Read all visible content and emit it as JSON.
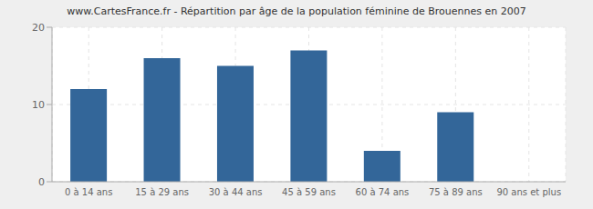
{
  "chart_data": {
    "type": "bar",
    "title": "www.CartesFrance.fr - Répartition par âge de la population féminine de Brouennes en 2007",
    "categories": [
      "0 à 14 ans",
      "15 à 29 ans",
      "30 à 44 ans",
      "45 à 59 ans",
      "60 à 74 ans",
      "75 à 89 ans",
      "90 ans et plus"
    ],
    "values": [
      12,
      16,
      15,
      17,
      4,
      9,
      0
    ],
    "color": "#336699",
    "ylim": [
      0,
      20
    ],
    "yticks": [
      0,
      10,
      20
    ],
    "grid": true
  }
}
